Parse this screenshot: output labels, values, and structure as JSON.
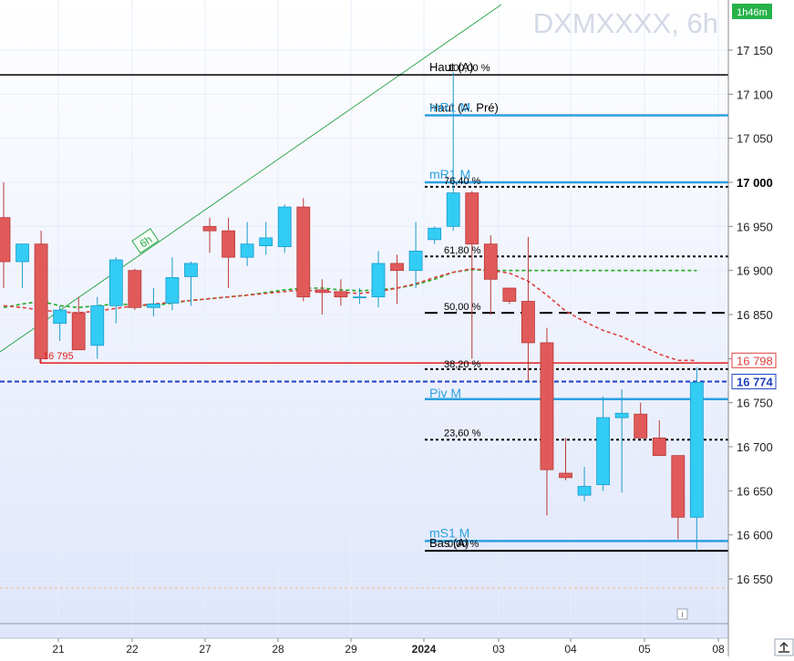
{
  "chart_data": {
    "type": "candlestick",
    "symbol_watermark": "DXMXXXX, 6h",
    "timer": "1h46m",
    "x_ticks": [
      "21",
      "22",
      "27",
      "28",
      "29",
      "2024",
      "03",
      "04",
      "05",
      "08"
    ],
    "y_ticks": [
      17150,
      17100,
      17050,
      17000,
      16950,
      16900,
      16850,
      16800,
      16750,
      16700,
      16650,
      16600,
      16550
    ],
    "y_range": [
      16490,
      17230
    ],
    "candles": [
      {
        "o": 16960,
        "h": 17000,
        "l": 16880,
        "c": 16910
      },
      {
        "o": 16910,
        "h": 16925,
        "l": 16880,
        "c": 16930
      },
      {
        "o": 16930,
        "h": 16945,
        "l": 16795,
        "c": 16800
      },
      {
        "o": 16840,
        "h": 16860,
        "l": 16820,
        "c": 16855
      },
      {
        "o": 16852,
        "h": 16870,
        "l": 16810,
        "c": 16810
      },
      {
        "o": 16815,
        "h": 16870,
        "l": 16800,
        "c": 16860
      },
      {
        "o": 16860,
        "h": 16915,
        "l": 16840,
        "c": 16912
      },
      {
        "o": 16900,
        "h": 16902,
        "l": 16855,
        "c": 16858
      },
      {
        "o": 16858,
        "h": 16880,
        "l": 16848,
        "c": 16862
      },
      {
        "o": 16863,
        "h": 16915,
        "l": 16855,
        "c": 16892
      },
      {
        "o": 16893,
        "h": 16910,
        "l": 16860,
        "c": 16908
      },
      {
        "o": 16950,
        "h": 16960,
        "l": 16920,
        "c": 16945
      },
      {
        "o": 16945,
        "h": 16960,
        "l": 16880,
        "c": 16915
      },
      {
        "o": 16915,
        "h": 16955,
        "l": 16905,
        "c": 16930
      },
      {
        "o": 16928,
        "h": 16955,
        "l": 16918,
        "c": 16937
      },
      {
        "o": 16927,
        "h": 16975,
        "l": 16920,
        "c": 16972
      },
      {
        "o": 16972,
        "h": 16982,
        "l": 16865,
        "c": 16870
      },
      {
        "o": 16878,
        "h": 16890,
        "l": 16850,
        "c": 16875
      },
      {
        "o": 16876,
        "h": 16890,
        "l": 16860,
        "c": 16870
      },
      {
        "o": 16870,
        "h": 16880,
        "l": 16862,
        "c": 16870
      },
      {
        "o": 16870,
        "h": 16922,
        "l": 16858,
        "c": 16908
      },
      {
        "o": 16908,
        "h": 16918,
        "l": 16862,
        "c": 16900
      },
      {
        "o": 16900,
        "h": 16955,
        "l": 16880,
        "c": 16922
      },
      {
        "o": 16935,
        "h": 16950,
        "l": 16930,
        "c": 16948
      },
      {
        "o": 16950,
        "h": 17125,
        "l": 16945,
        "c": 16988
      },
      {
        "o": 16988,
        "h": 16990,
        "l": 16800,
        "c": 16930
      },
      {
        "o": 16930,
        "h": 16940,
        "l": 16850,
        "c": 16890
      },
      {
        "o": 16880,
        "h": 16880,
        "l": 16862,
        "c": 16865
      },
      {
        "o": 16865,
        "h": 16938,
        "l": 16775,
        "c": 16818
      },
      {
        "o": 16818,
        "h": 16835,
        "l": 16622,
        "c": 16674
      },
      {
        "o": 16670,
        "h": 16710,
        "l": 16662,
        "c": 16665
      },
      {
        "o": 16645,
        "h": 16677,
        "l": 16638,
        "c": 16655
      },
      {
        "o": 16657,
        "h": 16757,
        "l": 16650,
        "c": 16733
      },
      {
        "o": 16733,
        "h": 16765,
        "l": 16648,
        "c": 16738
      },
      {
        "o": 16737,
        "h": 16750,
        "l": 16710,
        "c": 16710
      },
      {
        "o": 16710,
        "h": 16730,
        "l": 16690,
        "c": 16690
      },
      {
        "o": 16690,
        "h": 16690,
        "l": 16595,
        "c": 16620
      },
      {
        "o": 16620,
        "h": 16790,
        "l": 16582,
        "c": 16773
      }
    ],
    "moving_averages": [
      {
        "color": "#22aa22",
        "style": "dashed",
        "values": [
          16858,
          16862,
          16865,
          16860,
          16858,
          16860,
          16862,
          16861,
          16860,
          16863,
          16866,
          16868,
          16870,
          16872,
          16875,
          16878,
          16880,
          16880,
          16878,
          16877,
          16878,
          16880,
          16884,
          16890,
          16898,
          16901,
          16900,
          16900,
          16900,
          16900,
          16900,
          16900,
          16900,
          16900,
          16900,
          16900,
          16900,
          16900
        ]
      },
      {
        "color": "#e04040",
        "style": "dashed",
        "values": [
          16860,
          16858,
          16855,
          16853,
          16852,
          16854,
          16857,
          16860,
          16862,
          16864,
          16866,
          16868,
          16870,
          16872,
          16874,
          16876,
          16878,
          16876,
          16875,
          16874,
          16876,
          16880,
          16885,
          16892,
          16898,
          16902,
          16900,
          16897,
          16888,
          16872,
          16854,
          16842,
          16832,
          16825,
          16815,
          16805,
          16798,
          16798
        ]
      }
    ],
    "levels": [
      {
        "label": "Haut (A)",
        "value": 17122,
        "color": "#000000",
        "style": "solid",
        "full": true
      },
      {
        "label": "100,00 %",
        "value": 17122,
        "color": "#000000",
        "style": "none"
      },
      {
        "label": "Haut (A. Pré)",
        "value": 17076,
        "color": "#000000",
        "style": "solid"
      },
      {
        "label": "mR1 M",
        "value": 17076,
        "color": "#2aa0e0",
        "style": "solid"
      },
      {
        "label": "mR1 M",
        "value": 17000,
        "color": "#2aa0e0",
        "style": "solid"
      },
      {
        "label": "76,40 %",
        "value": 16995,
        "color": "#000000",
        "style": "dotted"
      },
      {
        "label": "61,80 %",
        "value": 16916,
        "color": "#000000",
        "style": "dotted"
      },
      {
        "label": "50,00 %",
        "value": 16852,
        "color": "#000000",
        "style": "dashed"
      },
      {
        "label": "38,20 %",
        "value": 16788,
        "color": "#000000",
        "style": "dotted"
      },
      {
        "label": "16 795",
        "value": 16795,
        "color": "#e02020",
        "style": "solid",
        "full": true
      },
      {
        "label": "Piv M",
        "value": 16754,
        "color": "#2aa0e0",
        "style": "solid"
      },
      {
        "label": "23,60 %",
        "value": 16708,
        "color": "#000000",
        "style": "dotted"
      },
      {
        "label": "mS1 M",
        "value": 16593,
        "color": "#2aa0e0",
        "style": "solid"
      },
      {
        "label": "Bas (A)",
        "value": 16582,
        "color": "#000000",
        "style": "solid"
      },
      {
        "label": "0,00 %",
        "value": 16582,
        "color": "#000000",
        "style": "none"
      }
    ],
    "price_badges": [
      {
        "label": "16 798",
        "value": 16798,
        "color": "#e04040",
        "bg": "#ffffff"
      },
      {
        "label": "16 774",
        "value": 16774,
        "color": "#2040c0",
        "bg": "#ffffff"
      }
    ],
    "current_price": 16774,
    "trendline_label": "6h",
    "colors": {
      "up": "#33ccf5",
      "down": "#e05a5a",
      "grid": "#e6eefa"
    }
  }
}
